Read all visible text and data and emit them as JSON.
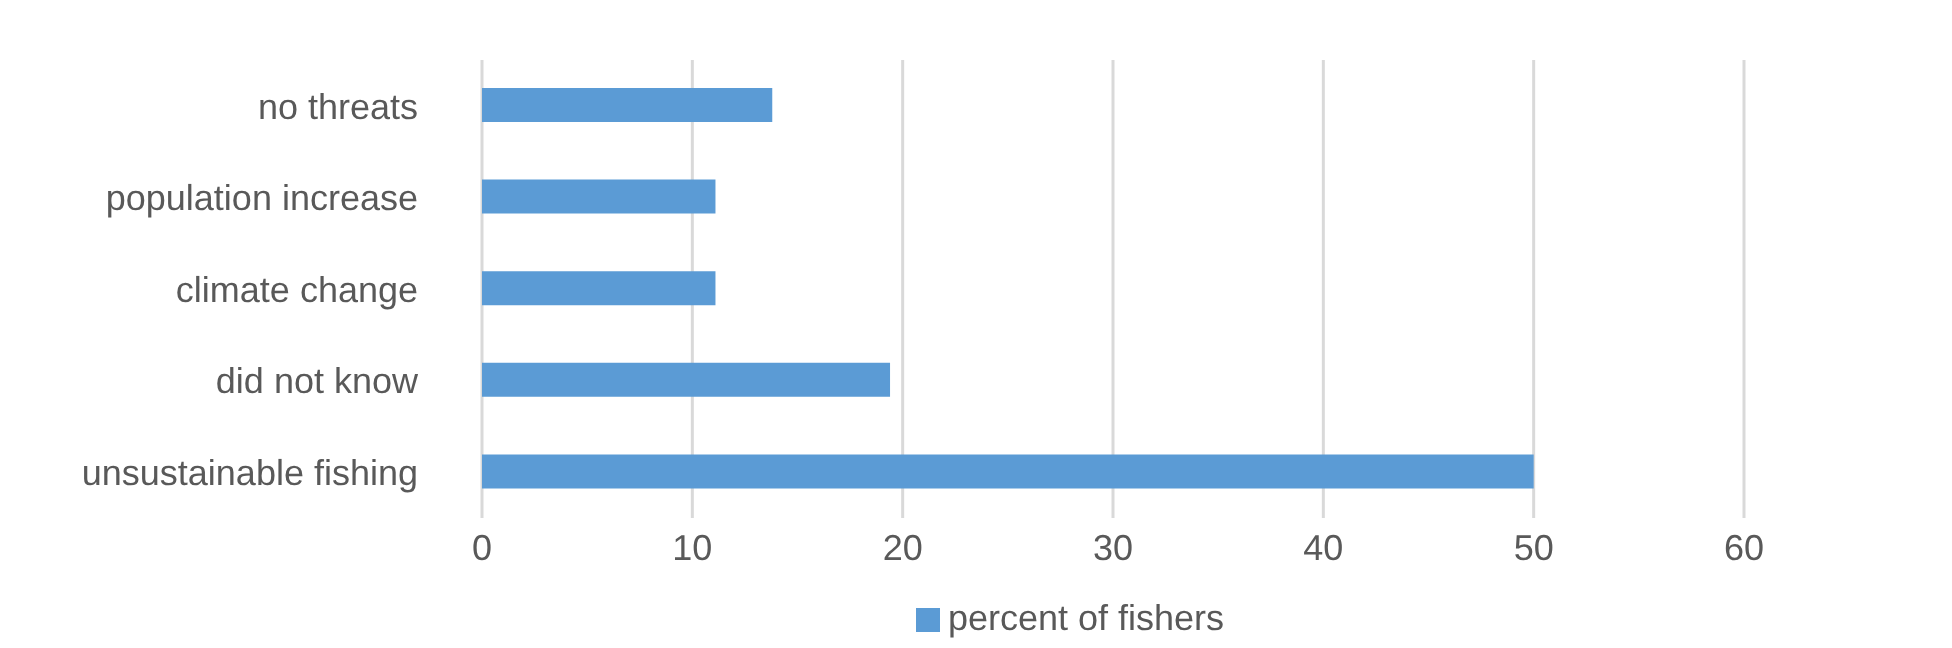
{
  "chart_data": {
    "type": "bar",
    "orientation": "horizontal",
    "categories": [
      "no threats",
      "population increase",
      "climate change",
      "did not know",
      "unsustainable fishing"
    ],
    "series": [
      {
        "name": "percent of fishers",
        "color": "#5b9bd5",
        "values": [
          13.8,
          11.1,
          11.1,
          19.4,
          50
        ]
      }
    ],
    "xlim": [
      0,
      60
    ],
    "xticks": [
      0,
      10,
      20,
      30,
      40,
      50,
      60
    ],
    "grid": "x",
    "legend": "bottom"
  }
}
